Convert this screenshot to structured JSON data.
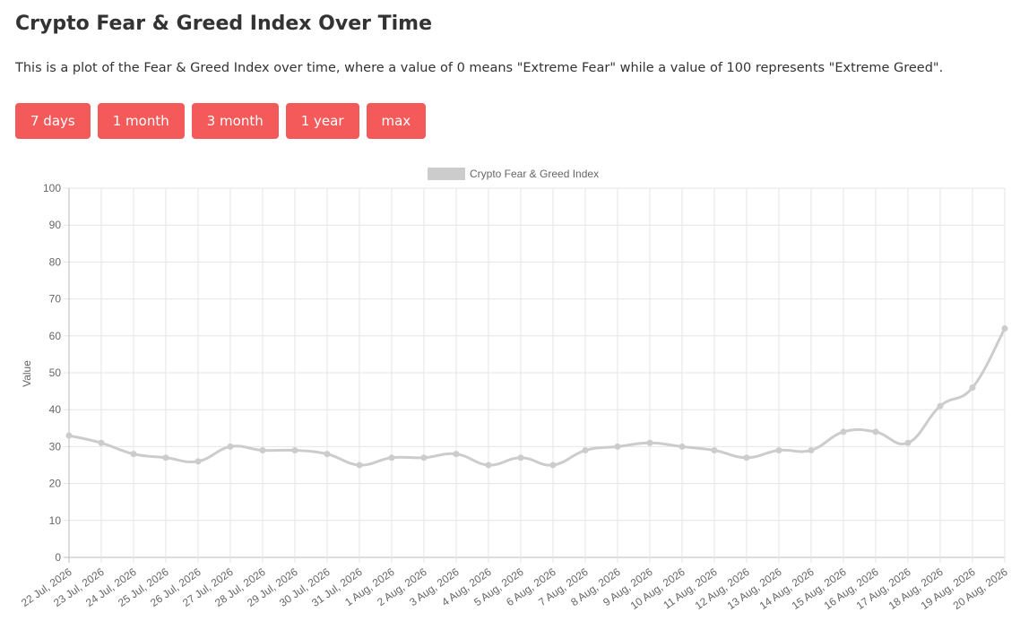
{
  "page": {
    "title": "Crypto Fear & Greed Index Over Time",
    "description": "This is a plot of the Fear & Greed Index over time, where a value of 0 means \"Extreme Fear\" while a value of 100 represents \"Extreme Greed\"."
  },
  "range_buttons": [
    {
      "label": "7 days"
    },
    {
      "label": "1 month"
    },
    {
      "label": "3 month"
    },
    {
      "label": "1 year"
    },
    {
      "label": "max"
    }
  ],
  "colors": {
    "button_bg": "#f55a5a",
    "line": "#cccccc",
    "grid": "#e6e6e6",
    "text": "#333333"
  },
  "chart_data": {
    "type": "line",
    "legend": [
      "Crypto Fear & Greed Index"
    ],
    "legend_position": "top-center",
    "ylabel": "Value",
    "xlabel": "",
    "ylim": [
      0,
      100
    ],
    "yticks": [
      0,
      10,
      20,
      30,
      40,
      50,
      60,
      70,
      80,
      90,
      100
    ],
    "grid": true,
    "categories": [
      "22 Jul, 2026",
      "23 Jul, 2026",
      "24 Jul, 2026",
      "25 Jul, 2026",
      "26 Jul, 2026",
      "27 Jul, 2026",
      "28 Jul, 2026",
      "29 Jul, 2026",
      "30 Jul, 2026",
      "31 Jul, 2026",
      "1 Aug, 2026",
      "2 Aug, 2026",
      "3 Aug, 2026",
      "4 Aug, 2026",
      "5 Aug, 2026",
      "6 Aug, 2026",
      "7 Aug, 2026",
      "8 Aug, 2026",
      "9 Aug, 2026",
      "10 Aug, 2026",
      "11 Aug, 2026",
      "12 Aug, 2026",
      "13 Aug, 2026",
      "14 Aug, 2026",
      "15 Aug, 2026",
      "16 Aug, 2026",
      "17 Aug, 2026",
      "18 Aug, 2026",
      "19 Aug, 2026",
      "20 Aug, 2026"
    ],
    "series": [
      {
        "name": "Crypto Fear & Greed Index",
        "values": [
          33,
          31,
          28,
          27,
          26,
          30,
          29,
          29,
          28,
          25,
          27,
          27,
          28,
          25,
          27,
          25,
          29,
          30,
          31,
          30,
          29,
          27,
          29,
          29,
          34,
          34,
          31,
          41,
          46,
          62
        ]
      }
    ]
  }
}
